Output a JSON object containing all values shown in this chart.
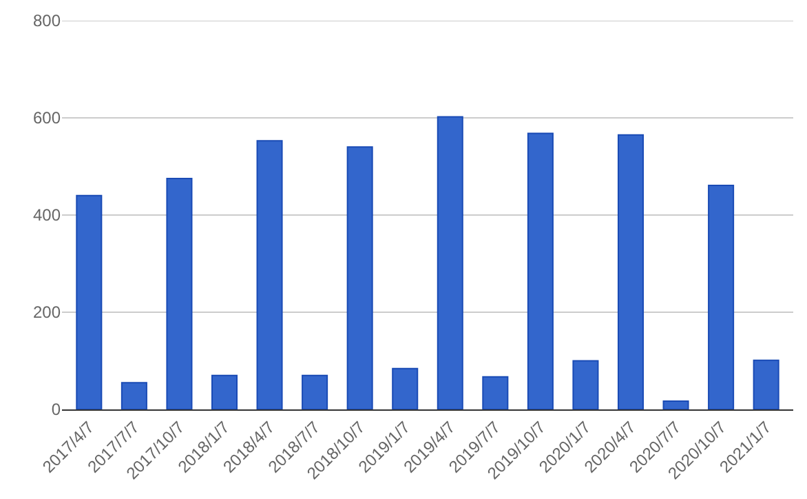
{
  "chart_data": {
    "type": "bar",
    "categories": [
      "2017/4/7",
      "2017/7/7",
      "2017/10/7",
      "2018/1/7",
      "2018/4/7",
      "2018/7/7",
      "2018/10/7",
      "2019/1/7",
      "2019/4/7",
      "2019/7/7",
      "2019/10/7",
      "2020/1/7",
      "2020/4/7",
      "2020/7/7",
      "2020/10/7",
      "2021/1/7"
    ],
    "values": [
      440,
      55,
      475,
      70,
      553,
      70,
      540,
      84,
      602,
      67,
      568,
      100,
      565,
      17,
      461,
      101
    ],
    "color": "#3366cc",
    "ylim": [
      0,
      800
    ],
    "yticks": [
      0,
      200,
      400,
      600,
      800
    ],
    "grid": "y"
  }
}
